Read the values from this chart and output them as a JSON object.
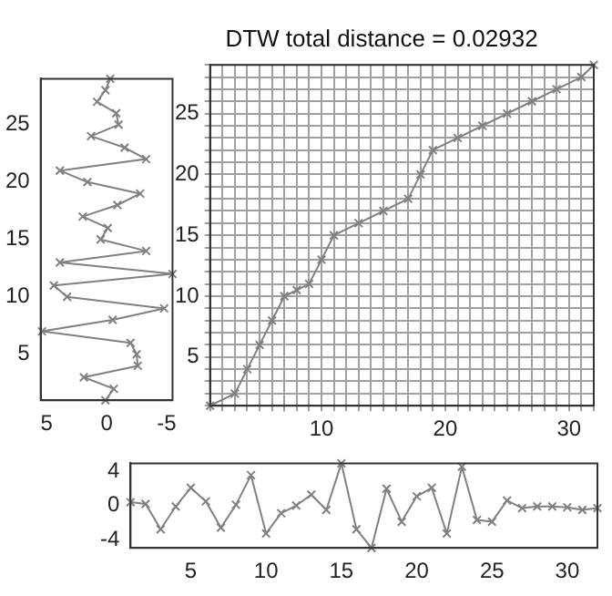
{
  "chart_data": [
    {
      "type": "line",
      "color": "#808080",
      "marker": "cross",
      "grid": false,
      "x": [
        0.1,
        -0.6,
        1.9,
        -2.6,
        -2.5,
        -2.0,
        5.4,
        -0.5,
        -4.8,
        3.3,
        4.4,
        -5.5,
        3.9,
        -3.3,
        0.5,
        -0.1,
        2.0,
        -0.9,
        -2.8,
        1.6,
        3.9,
        -3.3,
        -1.5,
        1.3,
        -1.0,
        -0.8,
        0.8,
        0.1,
        -0.3
      ],
      "values": [
        1,
        2,
        3,
        4,
        5,
        6,
        7,
        8,
        9,
        10,
        11,
        12,
        13,
        14,
        15,
        16,
        17,
        18,
        19,
        20,
        21,
        22,
        23,
        24,
        25,
        26,
        27,
        28,
        29
      ],
      "xlim": [
        5.5,
        -5.5
      ],
      "xticks": [
        5,
        0,
        -5
      ],
      "ylim": [
        1,
        29
      ],
      "yticks": [
        5,
        10,
        15,
        20,
        25
      ]
    },
    {
      "type": "line",
      "title": "DTW total distance = 0.02932",
      "color": "#808080",
      "marker": "cross",
      "grid": true,
      "x": [
        1,
        3,
        4,
        5,
        6,
        7,
        8,
        9,
        10,
        11,
        13,
        15,
        17,
        18,
        19,
        21,
        23,
        25,
        27,
        29,
        31,
        32
      ],
      "values": [
        1,
        2,
        4,
        6,
        8,
        10,
        10.5,
        11,
        13,
        15,
        16,
        17,
        18,
        20,
        22,
        23,
        24,
        25,
        26,
        27,
        28,
        29
      ],
      "xlim": [
        1,
        32
      ],
      "xticks": [
        {
          "value": 1,
          "label": null
        },
        {
          "value": 2,
          "label": null
        },
        {
          "value": 3,
          "label": null
        },
        {
          "value": 4,
          "label": null
        },
        {
          "value": 5,
          "label": null
        },
        {
          "value": 6,
          "label": null
        },
        {
          "value": 7,
          "label": null
        },
        {
          "value": 8,
          "label": null
        },
        {
          "value": 9,
          "label": null
        },
        10,
        {
          "value": 11,
          "label": null
        },
        {
          "value": 12,
          "label": null
        },
        {
          "value": 13,
          "label": null
        },
        {
          "value": 14,
          "label": null
        },
        {
          "value": 15,
          "label": null
        },
        {
          "value": 16,
          "label": null
        },
        {
          "value": 17,
          "label": null
        },
        {
          "value": 18,
          "label": null
        },
        {
          "value": 19,
          "label": null
        },
        20,
        {
          "value": 21,
          "label": null
        },
        {
          "value": 22,
          "label": null
        },
        {
          "value": 23,
          "label": null
        },
        {
          "value": 24,
          "label": null
        },
        {
          "value": 25,
          "label": null
        },
        {
          "value": 26,
          "label": null
        },
        {
          "value": 27,
          "label": null
        },
        {
          "value": 28,
          "label": null
        },
        {
          "value": 29,
          "label": null
        },
        30,
        {
          "value": 31,
          "label": null
        },
        {
          "value": 32,
          "label": null
        }
      ],
      "ylim": [
        1,
        29
      ],
      "yticks": [
        {
          "value": 1,
          "label": null
        },
        {
          "value": 2,
          "label": null
        },
        {
          "value": 3,
          "label": null
        },
        {
          "value": 4,
          "label": null
        },
        5,
        {
          "value": 6,
          "label": null
        },
        {
          "value": 7,
          "label": null
        },
        {
          "value": 8,
          "label": null
        },
        {
          "value": 9,
          "label": null
        },
        10,
        {
          "value": 11,
          "label": null
        },
        {
          "value": 12,
          "label": null
        },
        {
          "value": 13,
          "label": null
        },
        {
          "value": 14,
          "label": null
        },
        15,
        {
          "value": 16,
          "label": null
        },
        {
          "value": 17,
          "label": null
        },
        {
          "value": 18,
          "label": null
        },
        {
          "value": 19,
          "label": null
        },
        20,
        {
          "value": 21,
          "label": null
        },
        {
          "value": 22,
          "label": null
        },
        {
          "value": 23,
          "label": null
        },
        {
          "value": 24,
          "label": null
        },
        25,
        {
          "value": 26,
          "label": null
        },
        {
          "value": 27,
          "label": null
        },
        {
          "value": 28,
          "label": null
        },
        {
          "value": 29,
          "label": null
        }
      ]
    },
    {
      "type": "line",
      "color": "#808080",
      "marker": "cross",
      "grid": false,
      "x": [
        1,
        2,
        3,
        4,
        5,
        6,
        7,
        8,
        9,
        10,
        11,
        12,
        13,
        14,
        15,
        16,
        17,
        18,
        19,
        20,
        21,
        22,
        23,
        24,
        25,
        26,
        27,
        28,
        29,
        30,
        31,
        32
      ],
      "values": [
        0.4,
        0.2,
        -2.8,
        -0.1,
        2.1,
        0.5,
        -2.6,
        0.1,
        3.6,
        -3.3,
        -0.9,
        0,
        1.3,
        -0.5,
        5.0,
        -2.8,
        -5.0,
        2.0,
        -1.9,
        1.1,
        2.1,
        -3.3,
        4.6,
        -1.7,
        -1.9,
        0.6,
        -0.3,
        -0.1,
        -0.1,
        -0.2,
        -0.5,
        -0.3
      ],
      "xlim": [
        1,
        32
      ],
      "xticks": [
        5,
        10,
        15,
        20,
        25,
        30
      ],
      "ylim": [
        -5,
        5
      ],
      "yticks": [
        -4,
        0,
        4
      ]
    }
  ]
}
